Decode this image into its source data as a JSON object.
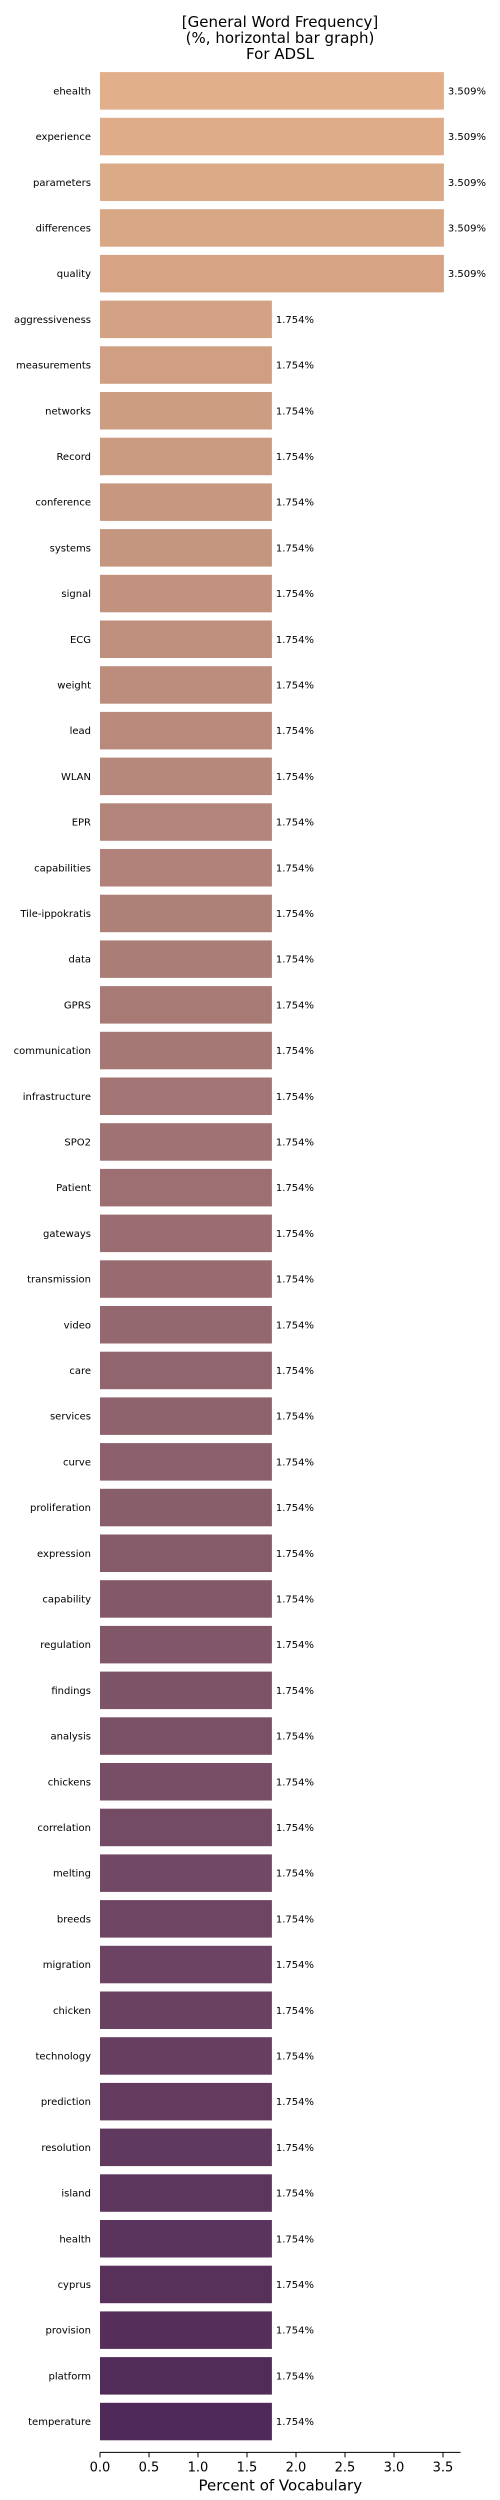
{
  "chart_data": {
    "type": "bar",
    "orientation": "horizontal",
    "title_lines": [
      "[General Word Frequency]",
      "(%, horizontal bar graph)",
      "For ADSL"
    ],
    "xlabel": "Percent of Vocabulary",
    "ylabel": "",
    "xlim": [
      0,
      3.68
    ],
    "xticks": [
      0.0,
      0.5,
      1.0,
      1.5,
      2.0,
      2.5,
      3.0,
      3.5
    ],
    "xtick_labels": [
      "0.0",
      "0.5",
      "1.0",
      "1.5",
      "2.0",
      "2.5",
      "3.0",
      "3.5"
    ],
    "grid": false,
    "colormap": "flare",
    "color_start": "#e1af89",
    "color_end": "#4f2958",
    "categories": [
      "ehealth",
      "experience",
      "parameters",
      "differences",
      "quality",
      "aggressiveness",
      "measurements",
      "networks",
      "Record",
      "conference",
      "systems",
      "signal",
      "ECG",
      "weight",
      "lead",
      "WLAN",
      "EPR",
      "capabilities",
      "Tile-ippokratis",
      "data",
      "GPRS",
      "communication",
      "infrastructure",
      "SPO2",
      "Patient",
      "gateways",
      "transmission",
      "video",
      "care",
      "services",
      "curve",
      "proliferation",
      "expression",
      "capability",
      "regulation",
      "findings",
      "analysis",
      "chickens",
      "correlation",
      "melting",
      "breeds",
      "migration",
      "chicken",
      "technology",
      "prediction",
      "resolution",
      "island",
      "health",
      "cyprus",
      "provision",
      "platform",
      "temperature"
    ],
    "values": [
      3.509,
      3.509,
      3.509,
      3.509,
      3.509,
      1.754,
      1.754,
      1.754,
      1.754,
      1.754,
      1.754,
      1.754,
      1.754,
      1.754,
      1.754,
      1.754,
      1.754,
      1.754,
      1.754,
      1.754,
      1.754,
      1.754,
      1.754,
      1.754,
      1.754,
      1.754,
      1.754,
      1.754,
      1.754,
      1.754,
      1.754,
      1.754,
      1.754,
      1.754,
      1.754,
      1.754,
      1.754,
      1.754,
      1.754,
      1.754,
      1.754,
      1.754,
      1.754,
      1.754,
      1.754,
      1.754,
      1.754,
      1.754,
      1.754,
      1.754,
      1.754,
      1.754
    ],
    "value_labels": [
      "3.509%",
      "3.509%",
      "3.509%",
      "3.509%",
      "3.509%",
      "1.754%",
      "1.754%",
      "1.754%",
      "1.754%",
      "1.754%",
      "1.754%",
      "1.754%",
      "1.754%",
      "1.754%",
      "1.754%",
      "1.754%",
      "1.754%",
      "1.754%",
      "1.754%",
      "1.754%",
      "1.754%",
      "1.754%",
      "1.754%",
      "1.754%",
      "1.754%",
      "1.754%",
      "1.754%",
      "1.754%",
      "1.754%",
      "1.754%",
      "1.754%",
      "1.754%",
      "1.754%",
      "1.754%",
      "1.754%",
      "1.754%",
      "1.754%",
      "1.754%",
      "1.754%",
      "1.754%",
      "1.754%",
      "1.754%",
      "1.754%",
      "1.754%",
      "1.754%",
      "1.754%",
      "1.754%",
      "1.754%",
      "1.754%",
      "1.754%",
      "1.754%",
      "1.754%"
    ]
  }
}
